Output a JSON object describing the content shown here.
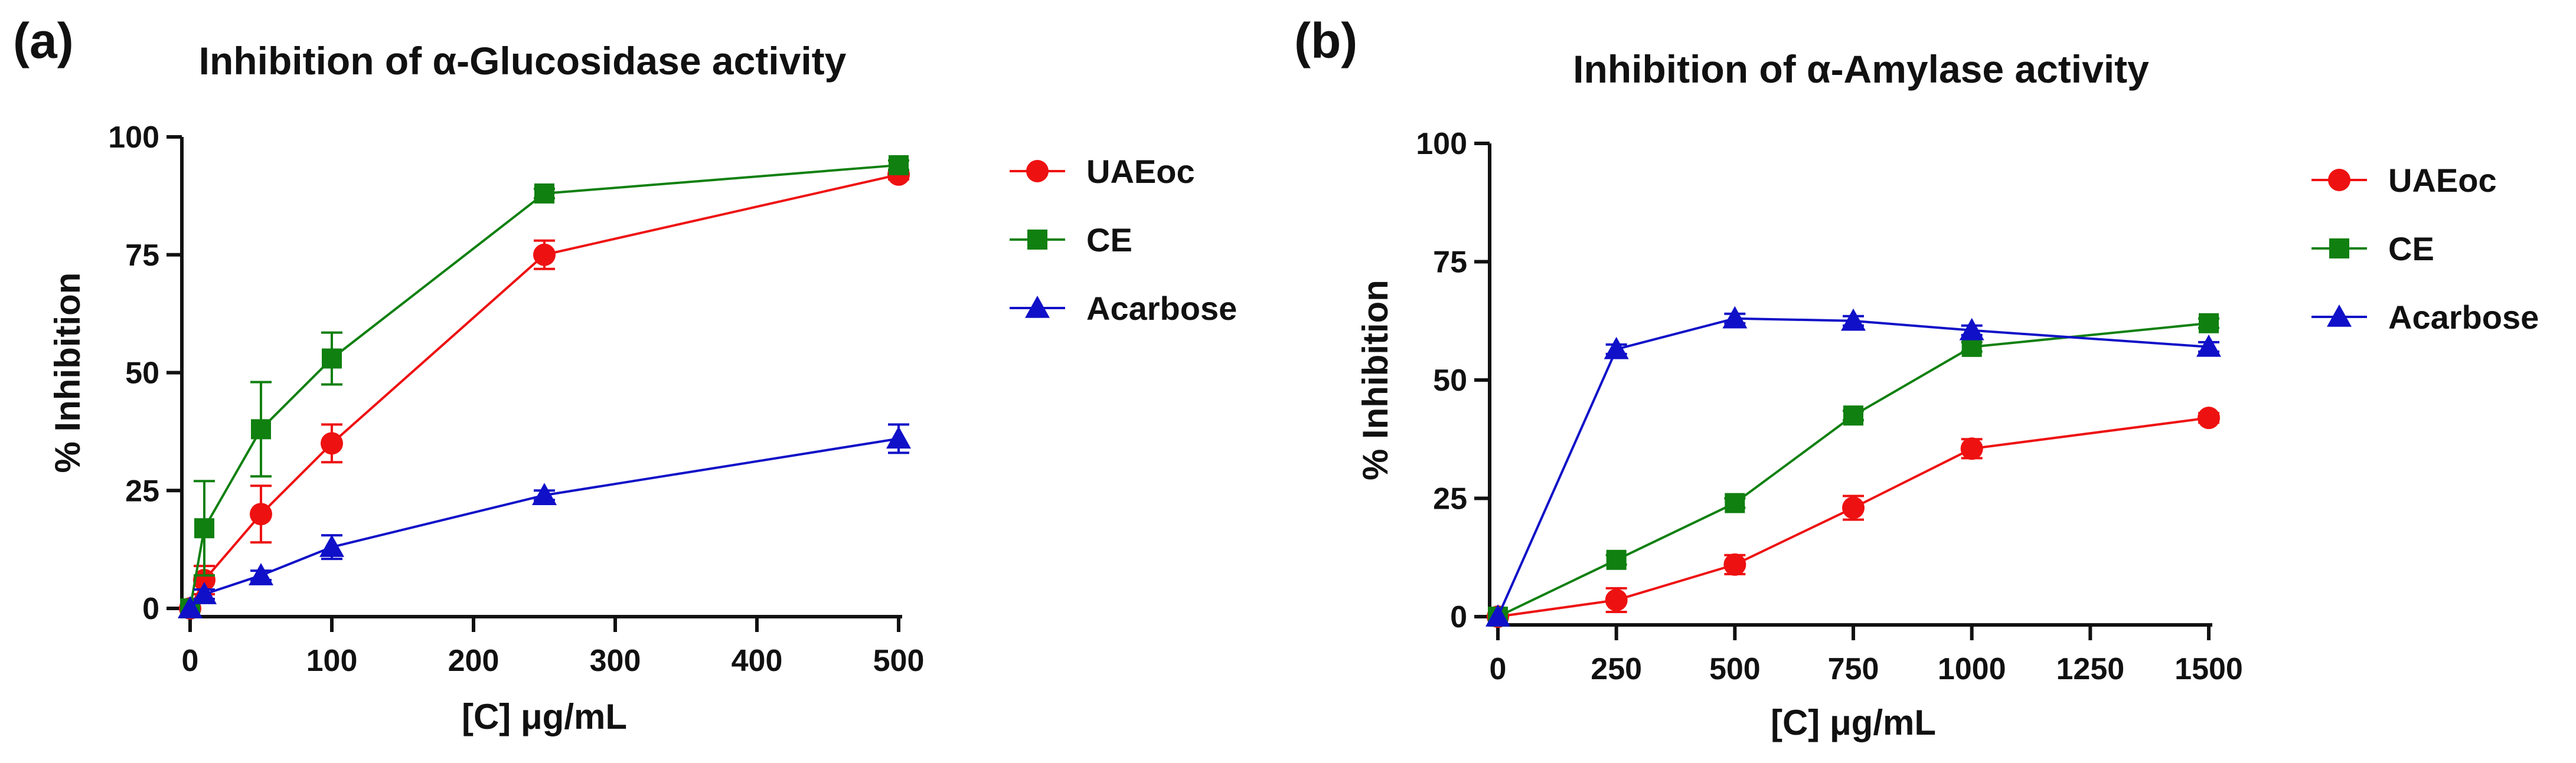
{
  "chart_data": [
    {
      "panel_label": "(a)",
      "type": "line",
      "title": "Inhibition of α-Glucosidase activity",
      "xlabel": "[C] μg/mL",
      "ylabel": "% Inhibition",
      "xlim": [
        0,
        500
      ],
      "ylim": [
        0,
        100
      ],
      "xticks": [
        0,
        100,
        200,
        300,
        400,
        500
      ],
      "yticks": [
        0,
        25,
        50,
        75,
        100
      ],
      "grid": false,
      "legend_position": "right",
      "series": [
        {
          "name": "UAEoc",
          "color": "#ee1111",
          "marker": "circle",
          "x": [
            0,
            10,
            50,
            100,
            250,
            500
          ],
          "y": [
            0,
            6,
            20,
            35,
            75,
            92
          ],
          "err": [
            0,
            3,
            6,
            4,
            3,
            1
          ]
        },
        {
          "name": "CE",
          "color": "#108010",
          "marker": "square",
          "x": [
            0,
            10,
            50,
            100,
            250,
            500
          ],
          "y": [
            0,
            17,
            38,
            53,
            88,
            94
          ],
          "err": [
            0,
            10,
            10,
            5.5,
            1,
            1
          ]
        },
        {
          "name": "Acarbose",
          "color": "#1010c8",
          "marker": "triangle",
          "x": [
            0,
            10,
            50,
            100,
            250,
            500
          ],
          "y": [
            0,
            3,
            7,
            13,
            24,
            36
          ],
          "err": [
            0,
            1,
            1,
            2.5,
            1,
            3
          ]
        }
      ]
    },
    {
      "panel_label": "(b)",
      "type": "line",
      "title": "Inhibition of α-Amylase activity",
      "xlabel": "[C] μg/mL",
      "ylabel": "% Inhibition",
      "xlim": [
        0,
        1500
      ],
      "ylim": [
        0,
        100
      ],
      "xticks": [
        0,
        250,
        500,
        750,
        1000,
        1250,
        1500
      ],
      "yticks": [
        0,
        25,
        50,
        75,
        100
      ],
      "grid": false,
      "legend_position": "right",
      "series": [
        {
          "name": "UAEoc",
          "color": "#ee1111",
          "marker": "circle",
          "x": [
            0,
            250,
            500,
            750,
            1000,
            1500
          ],
          "y": [
            0,
            3.5,
            11,
            23,
            35.5,
            42
          ],
          "err": [
            0,
            2.5,
            2,
            2.5,
            2,
            1
          ]
        },
        {
          "name": "CE",
          "color": "#108010",
          "marker": "square",
          "x": [
            0,
            250,
            500,
            750,
            1000,
            1500
          ],
          "y": [
            0,
            12,
            24,
            42.5,
            57,
            62
          ],
          "err": [
            0,
            1,
            1,
            1,
            1,
            1
          ]
        },
        {
          "name": "Acarbose",
          "color": "#1010c8",
          "marker": "triangle",
          "x": [
            0,
            250,
            500,
            750,
            1000,
            1500
          ],
          "y": [
            0,
            56.5,
            63,
            62.5,
            60.5,
            57
          ],
          "err": [
            0,
            1,
            1,
            1,
            1,
            1
          ]
        }
      ]
    }
  ]
}
